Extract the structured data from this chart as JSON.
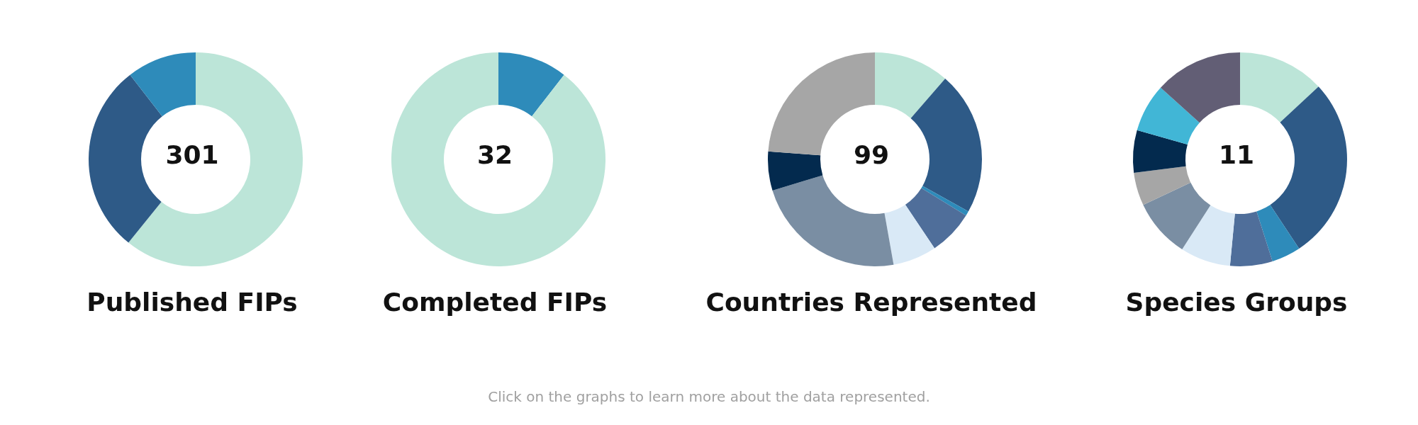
{
  "chart_data": [
    {
      "type": "donut",
      "title": "Published FIPs",
      "annotations": [
        "301"
      ],
      "categories": [
        null,
        null,
        null
      ],
      "values": [
        60.8,
        28.7,
        10.5
      ],
      "colors": [
        "#bce5d8",
        "#2e5a87",
        "#2e8bba"
      ]
    },
    {
      "type": "donut",
      "title": "Completed FIPs",
      "annotations": [
        "32"
      ],
      "categories": [
        null,
        null
      ],
      "values": [
        10.5,
        89.5
      ],
      "colors": [
        "#2e8bba",
        "#bce5d8"
      ]
    },
    {
      "type": "donut",
      "title": "Countries Represented",
      "annotations": [
        "99"
      ],
      "categories": [
        null,
        null,
        null,
        null,
        null,
        null,
        null,
        null
      ],
      "values": [
        11.4,
        21.7,
        0.7,
        6.8,
        6.6,
        23.1,
        5.9,
        23.8
      ],
      "colors": [
        "#bce5d8",
        "#2e5a87",
        "#2e8bba",
        "#4f6e9a",
        "#d9e9f6",
        "#7a8ea3",
        "#032a4e",
        "#a6a6a6"
      ]
    },
    {
      "type": "donut",
      "title": "Species Groups",
      "annotations": [
        "11",
        "Click on the graphs to learn more about the data represented."
      ],
      "categories": [
        null,
        null,
        null,
        null,
        null,
        null,
        null,
        null,
        null,
        null
      ],
      "values": [
        13.1,
        27.6,
        4.4,
        6.4,
        7.6,
        8.9,
        5.0,
        6.4,
        7.3,
        13.3
      ],
      "colors": [
        "#bce5d8",
        "#2e5a87",
        "#2e8bba",
        "#4f6e9a",
        "#d9e9f6",
        "#7a8ea3",
        "#a6a6a6",
        "#032a4e",
        "#41b6d6",
        "#625e75"
      ]
    }
  ]
}
